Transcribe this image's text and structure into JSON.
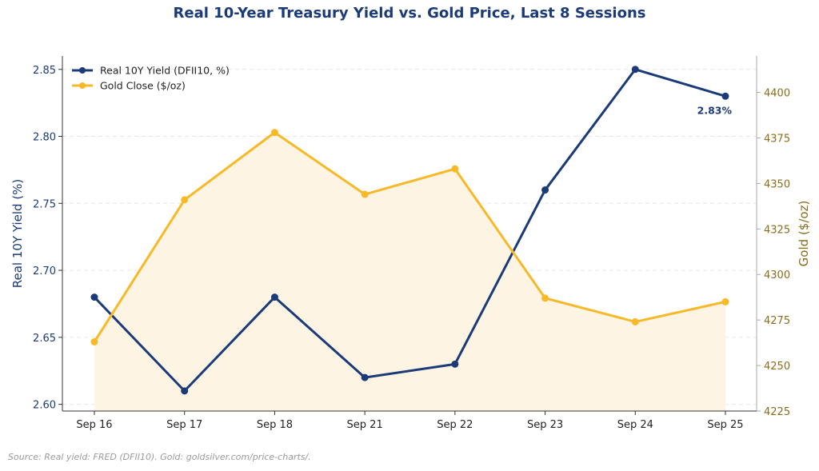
{
  "chart_data": {
    "type": "line",
    "title": "Real 10-Year Treasury Yield vs. Gold Price, Last 8 Sessions",
    "categories": [
      "Sep 16",
      "Sep 17",
      "Sep 18",
      "Sep 21",
      "Sep 22",
      "Sep 23",
      "Sep 24",
      "Sep 25"
    ],
    "left_axis": {
      "label": "Real 10Y Yield (%)",
      "range": [
        2.595,
        2.86
      ],
      "ticks": [
        "2.60",
        "2.65",
        "2.70",
        "2.75",
        "2.80",
        "2.85"
      ],
      "tick_values": [
        2.6,
        2.65,
        2.7,
        2.75,
        2.8,
        2.85
      ],
      "color": "#1b3a78"
    },
    "right_axis": {
      "label": "Gold ($/oz)",
      "range": [
        4225,
        4420
      ],
      "ticks": [
        "4225",
        "4250",
        "4275",
        "4300",
        "4325",
        "4350",
        "4375",
        "4400"
      ],
      "tick_values": [
        4225,
        4250,
        4275,
        4300,
        4325,
        4350,
        4375,
        4400
      ],
      "color": "#8a6d1a"
    },
    "series": [
      {
        "name": "Real 10Y Yield (DFII10, %)",
        "axis": "left",
        "color": "#1b3a78",
        "values": [
          2.68,
          2.61,
          2.68,
          2.62,
          2.63,
          2.76,
          2.85,
          2.83
        ]
      },
      {
        "name": "Gold Close ($/oz)",
        "axis": "right",
        "color": "#f7b928",
        "fill": "#fdf4e3",
        "values": [
          4263,
          4341,
          4378,
          4344,
          4358,
          4287,
          4274,
          4285
        ]
      }
    ],
    "annotation": {
      "text": "2.83%",
      "series": 0,
      "point": 7
    },
    "legend": "top-left",
    "grid": "horizontal-dashed"
  },
  "source": "Source: Real yield: FRED (DFII10). Gold: goldsilver.com/price-charts/."
}
